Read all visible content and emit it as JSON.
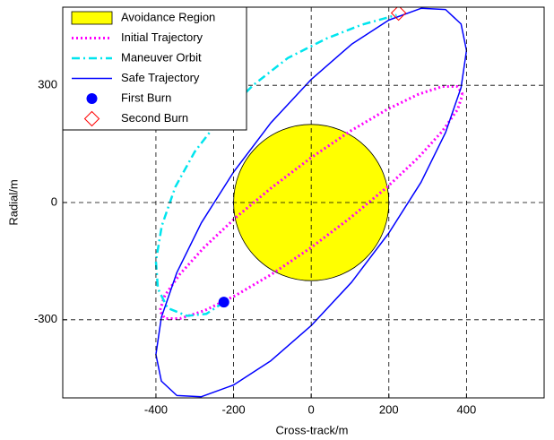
{
  "chart_data": {
    "type": "line",
    "xlabel": "Cross-track/m",
    "ylabel": "Radial/m",
    "xlim": [
      -640,
      600
    ],
    "ylim": [
      -500,
      500
    ],
    "xticks": [
      -400,
      -200,
      0,
      200,
      400
    ],
    "yticks": [
      -300,
      0,
      300
    ],
    "grid": true,
    "legend": "upper left",
    "region": {
      "name": "Avoidance Region",
      "color": "#ffff00",
      "center": [
        0,
        0
      ],
      "radius": 200
    },
    "series": [
      {
        "name": "Initial Trajectory",
        "color": "#ff00ff",
        "style": "dotted",
        "x": [
          390,
          377,
          338,
          276,
          195,
          101,
          0,
          -101,
          -195,
          -276,
          -338,
          -377,
          -390,
          -377,
          -338,
          -276,
          -195,
          -101,
          0,
          101,
          195,
          276,
          338,
          377,
          390
        ],
        "y": [
          277,
          297,
          297,
          277,
          238,
          183,
          115,
          39,
          -39,
          -115,
          -183,
          -238,
          -277,
          -297,
          -297,
          -277,
          -238,
          -183,
          -115,
          -39,
          39,
          115,
          183,
          238,
          277
        ]
      },
      {
        "name": "Maneuver Orbit",
        "color": "#00e5ee",
        "style": "dashdot",
        "x": [
          -225,
          -270,
          -320,
          -370,
          -395,
          -400,
          -385,
          -350,
          -300,
          -230,
          -150,
          -60,
          40,
          130,
          220
        ],
        "y": [
          -255,
          -285,
          -290,
          -270,
          -220,
          -150,
          -60,
          40,
          130,
          220,
          300,
          370,
          420,
          455,
          480
        ]
      },
      {
        "name": "Safe Trajectory",
        "color": "#0000ff",
        "style": "solid",
        "x": [
          400,
          386,
          346,
          283,
          200,
          104,
          0,
          -104,
          -200,
          -283,
          -346,
          -386,
          -400,
          -386,
          -346,
          -283,
          -200,
          -104,
          0,
          104,
          200,
          283,
          346,
          386,
          400
        ],
        "y": [
          389,
          457,
          494,
          497,
          467,
          405,
          315,
          204,
          78,
          -52,
          -179,
          -294,
          -389,
          -457,
          -494,
          -497,
          -467,
          -405,
          -315,
          -204,
          -78,
          52,
          179,
          294,
          389
        ]
      },
      {
        "name": "First Burn",
        "color": "#0000ff",
        "marker": "circle",
        "x": [
          -225
        ],
        "y": [
          -255
        ]
      },
      {
        "name": "Second Burn",
        "color": "#ff0000",
        "marker": "diamond",
        "x": [
          225
        ],
        "y": [
          485
        ]
      }
    ]
  }
}
